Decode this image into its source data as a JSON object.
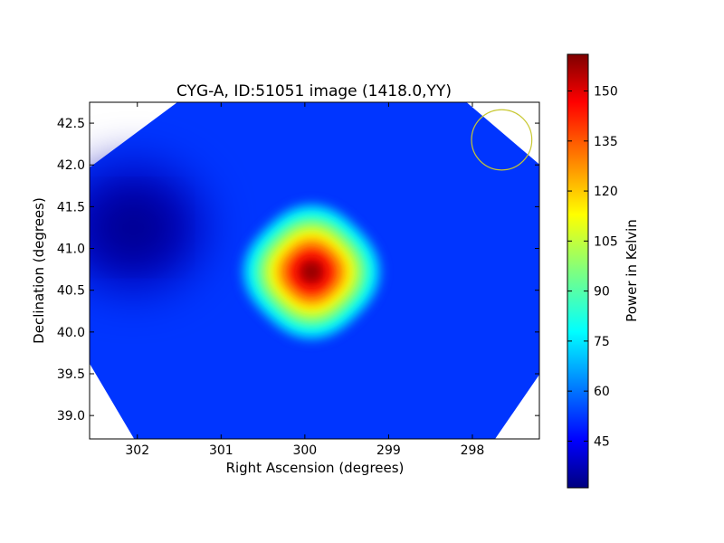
{
  "chart_data": {
    "type": "heatmap",
    "title": "CYG-A, ID:51051 image (1418.0,YY)",
    "xlabel": "Right Ascension (degrees)",
    "ylabel": "Declination (degrees)",
    "xlim": [
      302.57,
      297.2
    ],
    "ylim": [
      38.72,
      42.75
    ],
    "x_ticks": [
      302,
      301,
      300,
      299,
      298
    ],
    "x_tick_labels": [
      "302",
      "301",
      "300",
      "299",
      "298"
    ],
    "y_ticks": [
      39.0,
      39.5,
      40.0,
      40.5,
      41.0,
      41.5,
      42.0,
      42.5
    ],
    "y_tick_labels": [
      "39.0",
      "39.5",
      "40.0",
      "40.5",
      "41.0",
      "41.5",
      "42.0",
      "42.5"
    ],
    "colormap": "jet",
    "colorbar": {
      "label": "Power in Kelvin",
      "range": [
        31,
        161
      ],
      "ticks": [
        45,
        60,
        75,
        90,
        105,
        120,
        135,
        150
      ],
      "tick_labels": [
        "45",
        "60",
        "75",
        "90",
        "105",
        "120",
        "135",
        "150"
      ]
    },
    "background_level": 52,
    "peak": {
      "x": 299.92,
      "y": 40.72,
      "value": 161
    },
    "cold_spot": {
      "x": 302.05,
      "y": 41.25,
      "value": 31
    },
    "beam_circle": {
      "center_x": 297.65,
      "center_y": 42.3,
      "radius_deg": 0.36,
      "color": "#c8c832"
    },
    "grid": false
  }
}
